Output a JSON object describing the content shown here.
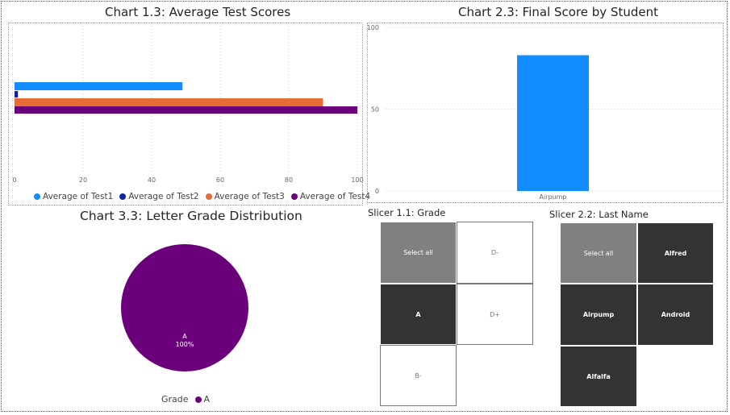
{
  "chart1": {
    "title": "Chart 1.3: Average Test Scores",
    "xticks": [
      "0",
      "20",
      "40",
      "60",
      "80",
      "100"
    ],
    "legend": [
      {
        "label": "Average of Test1",
        "color": "#118DFF"
      },
      {
        "label": "Average of Test2",
        "color": "#12239E"
      },
      {
        "label": "Average of Test3",
        "color": "#E66C37"
      },
      {
        "label": "Average of Test4",
        "color": "#6B007B"
      }
    ]
  },
  "chart2": {
    "title": "Chart 2.3: Final Score by Student",
    "yticks": [
      "100",
      "50",
      "0"
    ],
    "bar_label": "Airpump"
  },
  "chart3": {
    "title": "Chart 3.3: Letter Grade Distribution",
    "slice_label": "A",
    "slice_pct": "100%",
    "legend_title": "Grade",
    "legend_item": "A"
  },
  "slicer1": {
    "title": "Slicer 1.1: Grade",
    "tiles": [
      "Select all",
      "D-",
      "A",
      "D+",
      "B-"
    ]
  },
  "slicer2": {
    "title": "Slicer 2.2: Last Name",
    "tiles": [
      "Select all",
      "Alfred",
      "Airpump",
      "Android",
      "Alfalfa"
    ]
  },
  "chart_data": [
    {
      "type": "bar",
      "orientation": "horizontal",
      "title": "Chart 1.3: Average Test Scores",
      "series": [
        {
          "name": "Average of Test1",
          "values": [
            49
          ]
        },
        {
          "name": "Average of Test2",
          "values": [
            1
          ]
        },
        {
          "name": "Average of Test3",
          "values": [
            90
          ]
        },
        {
          "name": "Average of Test4",
          "values": [
            100
          ]
        }
      ],
      "xlim": [
        0,
        100
      ],
      "grid": true,
      "legend_position": "bottom"
    },
    {
      "type": "bar",
      "title": "Chart 2.3: Final Score by Student",
      "categories": [
        "Airpump"
      ],
      "values": [
        83
      ],
      "ylim": [
        0,
        100
      ],
      "grid": true
    },
    {
      "type": "pie",
      "title": "Chart 3.3: Letter Grade Distribution",
      "categories": [
        "A"
      ],
      "values": [
        100
      ],
      "colors": [
        "#6B007B"
      ],
      "legend_title": "Grade",
      "legend_position": "bottom"
    }
  ]
}
